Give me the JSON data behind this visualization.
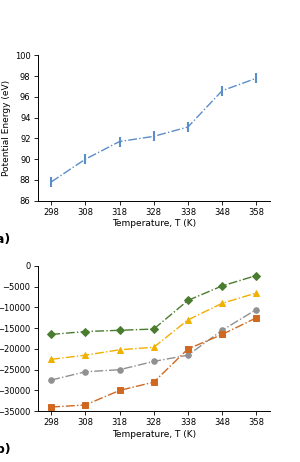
{
  "temp": [
    298,
    308,
    318,
    328,
    338,
    348,
    358
  ],
  "panel_a": {
    "values": [
      87.8,
      90.0,
      91.7,
      92.2,
      93.1,
      96.6,
      97.8
    ],
    "color": "#5b8dc8",
    "ylabel": "Potential Energy (eV)",
    "xlabel": "Temperature, T (K)",
    "ylim": [
      86,
      100
    ],
    "yticks": [
      86,
      88,
      90,
      92,
      94,
      96,
      98,
      100
    ],
    "label": "(a)"
  },
  "panel_b": {
    "series": [
      {
        "values": [
          -16500,
          -15800,
          -15500,
          -15200,
          -8300,
          -4800,
          -2300
        ],
        "color": "#4a7c30",
        "marker": "D",
        "markersize": 4
      },
      {
        "values": [
          -22500,
          -21500,
          -20200,
          -19600,
          -13000,
          -9000,
          -6500
        ],
        "color": "#f0b000",
        "marker": "^",
        "markersize": 5
      },
      {
        "values": [
          -27500,
          -25500,
          -25000,
          -23000,
          -21500,
          -15500,
          -10500
        ],
        "color": "#909090",
        "marker": "o",
        "markersize": 4
      },
      {
        "values": [
          -34000,
          -33500,
          -30000,
          -28000,
          -20000,
          -16500,
          -12500
        ],
        "color": "#d06820",
        "marker": "s",
        "markersize": 4
      }
    ],
    "ylabel": "Potential Energy (eV)",
    "xlabel": "Temperature, T (K)",
    "ylim": [
      -35000,
      0
    ],
    "yticks": [
      0,
      -5000,
      -10000,
      -15000,
      -20000,
      -25000,
      -30000,
      -35000
    ],
    "label": "(b)"
  },
  "xticks": [
    298,
    308,
    318,
    328,
    338,
    348,
    358
  ],
  "xlim": [
    294,
    362
  ],
  "background_color": "#ffffff"
}
